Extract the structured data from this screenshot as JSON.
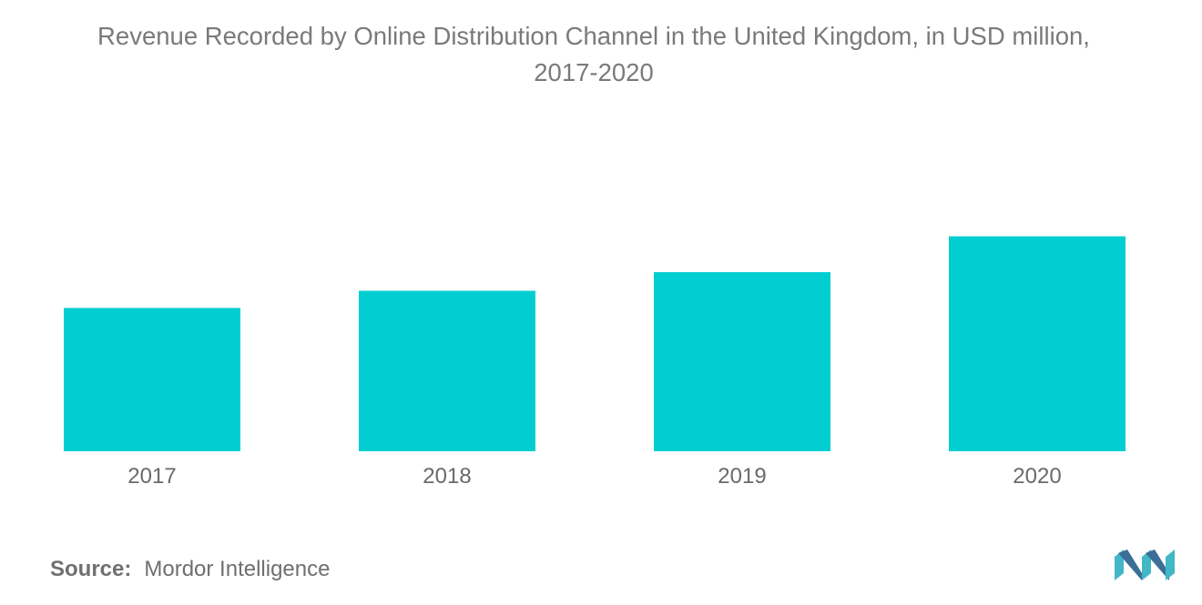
{
  "title": {
    "line1": "Revenue Recorded by Online Distribution Channel in the United Kingdom, in USD million,",
    "line2": "2017-2020"
  },
  "colors": {
    "bar": "#00CED1",
    "text": "#6f6f6f",
    "logo_dark": "#3b6f97",
    "logo_light": "#42b8c7"
  },
  "chart_data": {
    "type": "bar",
    "title": "Revenue Recorded by Online Distribution Channel in the United Kingdom, in USD million, 2017-2020",
    "categories": [
      "2017",
      "2018",
      "2019",
      "2020"
    ],
    "values": [
      1.0,
      1.12,
      1.25,
      1.5
    ],
    "xlabel": "",
    "ylabel": "",
    "ylim": [
      0,
      1.6
    ],
    "grid": false,
    "legend": "none"
  },
  "source": {
    "label": "Source:",
    "value": "Mordor Intelligence"
  },
  "logo": {
    "icon": "mordor-intelligence-logo-icon"
  }
}
